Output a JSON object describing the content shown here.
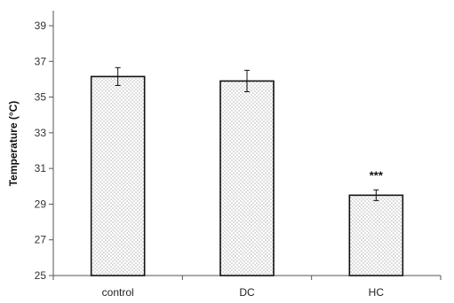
{
  "chart_data": {
    "type": "bar",
    "title": "",
    "xlabel": "",
    "ylabel": "Temperature (°C)",
    "categories": [
      "control",
      "DC",
      "HC"
    ],
    "values": [
      36.15,
      35.9,
      29.5
    ],
    "errors": [
      0.5,
      0.6,
      0.3
    ],
    "annotations": [
      "",
      "",
      "***"
    ],
    "ylim": [
      25,
      40
    ],
    "yticks": [
      25,
      27,
      29,
      31,
      33,
      35,
      37,
      39
    ],
    "grid": false,
    "bar_fill": "dotted",
    "colors": {
      "bar_edge": "#111111",
      "dot": "#8a8a8a",
      "axis": "#555555"
    }
  }
}
